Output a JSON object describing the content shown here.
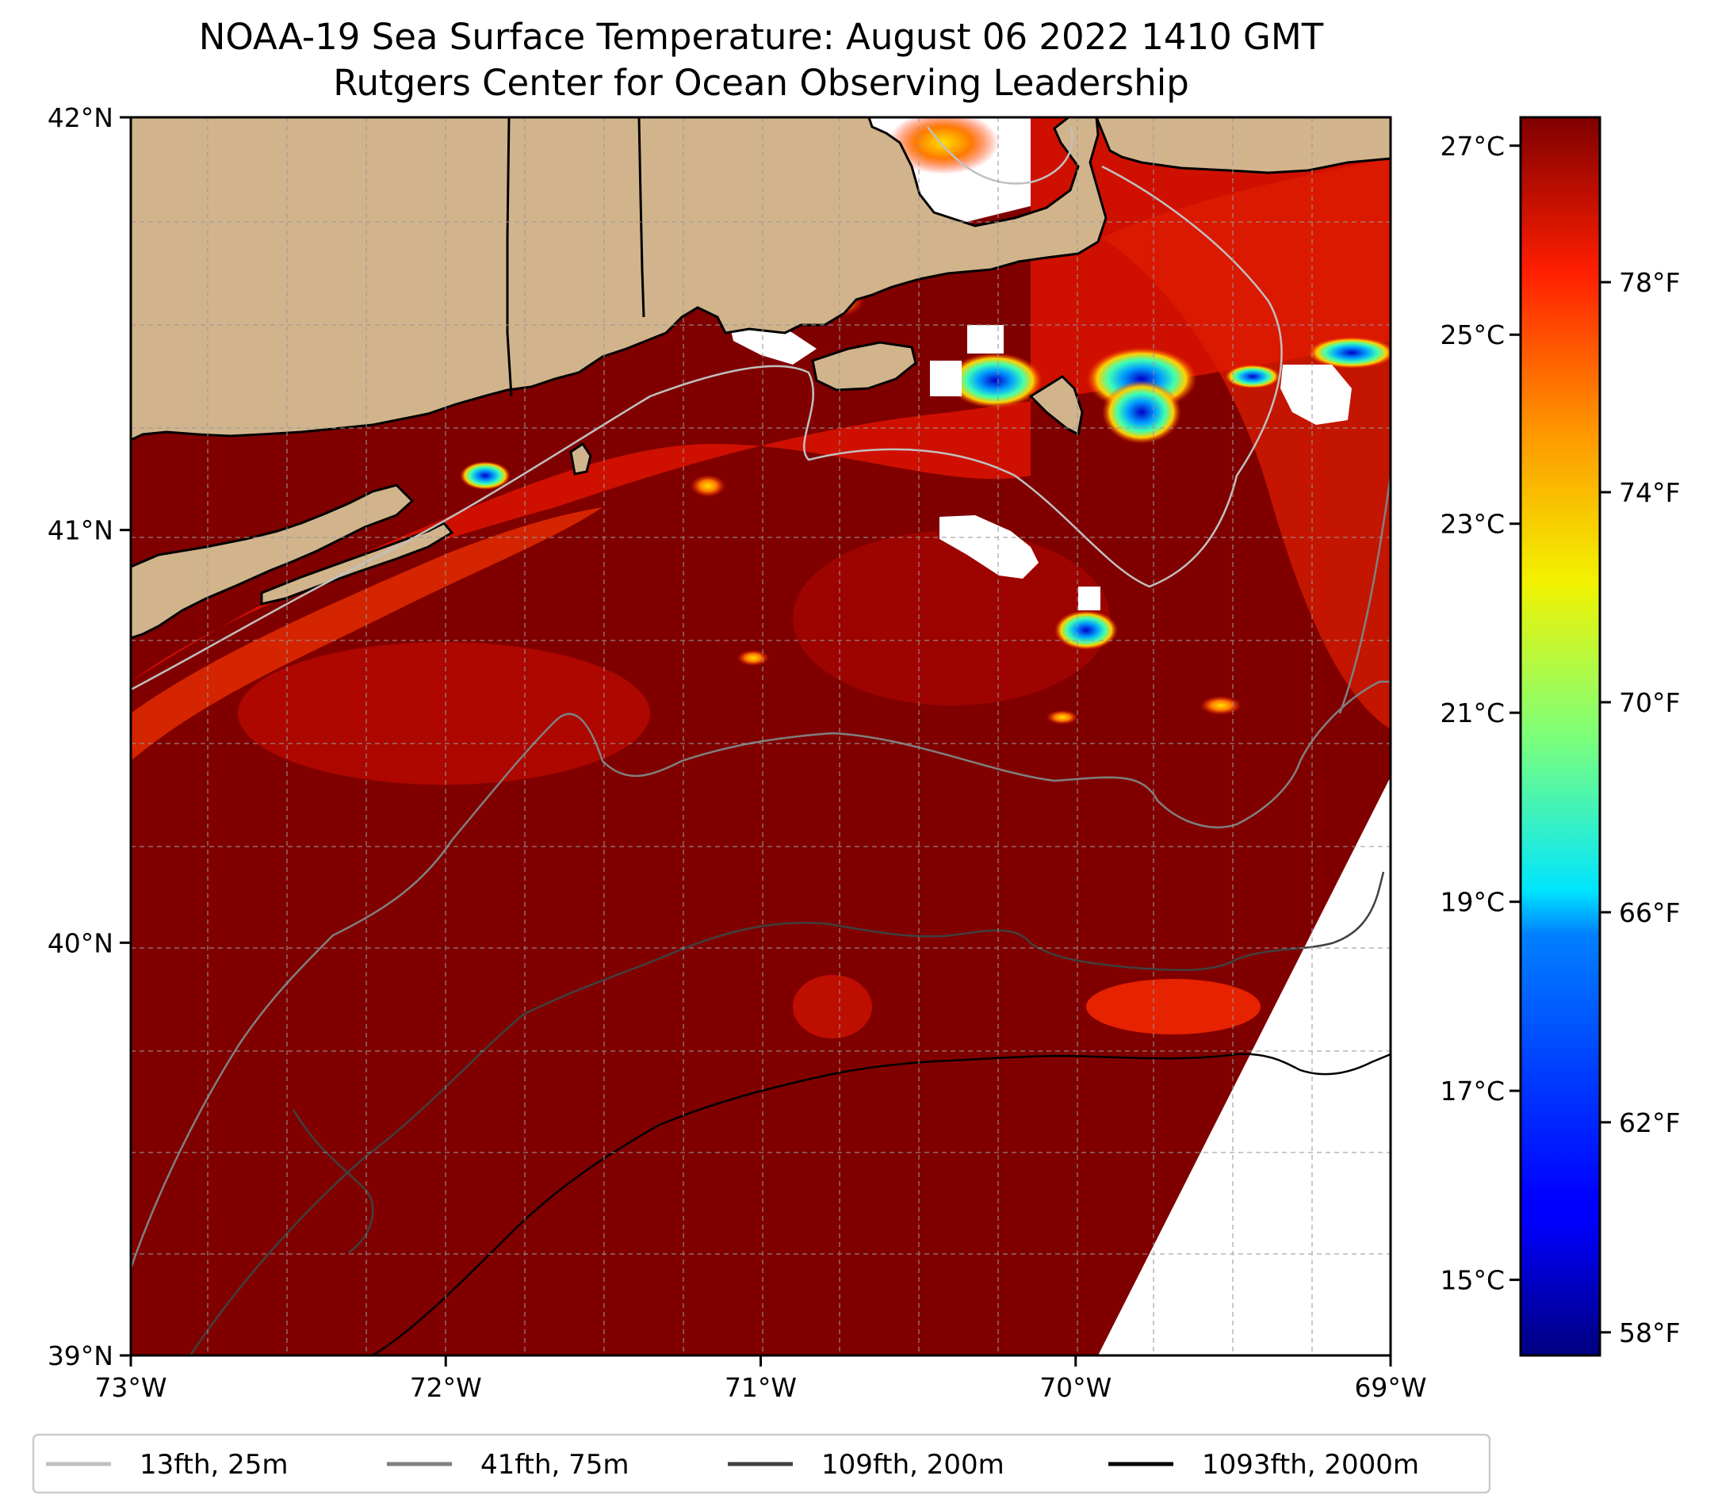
{
  "title": {
    "line1": "NOAA-19 Sea Surface Temperature: August 06 2022 1410 GMT",
    "line2": "Rutgers Center for Ocean Observing Leadership"
  },
  "map": {
    "lon_range": [
      -73,
      -69
    ],
    "lat_range": [
      39,
      42
    ],
    "x_ticks": [
      {
        "value": -73,
        "label": "73°W"
      },
      {
        "value": -72,
        "label": "72°W"
      },
      {
        "value": -71,
        "label": "71°W"
      },
      {
        "value": -70,
        "label": "70°W"
      },
      {
        "value": -69,
        "label": "69°W"
      }
    ],
    "y_ticks": [
      {
        "value": 42,
        "label": "42°N"
      },
      {
        "value": 41,
        "label": "41°N"
      },
      {
        "value": 40,
        "label": "40°N"
      },
      {
        "value": 39,
        "label": "39°N"
      }
    ],
    "grid": true,
    "colors": {
      "land": "#d2b48c",
      "coast": "#000000",
      "sst_warm": "#800000",
      "sst_mid": "#d81400"
    }
  },
  "colorbar": {
    "colormap": "jet",
    "range_c": [
      14.2,
      27.3
    ],
    "celsius_ticks": [
      {
        "value": 27,
        "label": "27°C"
      },
      {
        "value": 25,
        "label": "25°C"
      },
      {
        "value": 23,
        "label": "23°C"
      },
      {
        "value": 21,
        "label": "21°C"
      },
      {
        "value": 19,
        "label": "19°C"
      },
      {
        "value": 17,
        "label": "17°C"
      },
      {
        "value": 15,
        "label": "15°C"
      }
    ],
    "fahrenheit_ticks": [
      {
        "value": 78,
        "label": "78°F"
      },
      {
        "value": 74,
        "label": "74°F"
      },
      {
        "value": 70,
        "label": "70°F"
      },
      {
        "value": 66,
        "label": "66°F"
      },
      {
        "value": 62,
        "label": "62°F"
      },
      {
        "value": 58,
        "label": "58°F"
      }
    ]
  },
  "legend": {
    "position": "bottom",
    "entries": [
      {
        "label": "13fth, 25m",
        "color": "#c0c0c0"
      },
      {
        "label": "41fth, 75m",
        "color": "#808080"
      },
      {
        "label": "109fth, 200m",
        "color": "#404040"
      },
      {
        "label": "1093fth, 2000m",
        "color": "#000000"
      }
    ]
  }
}
